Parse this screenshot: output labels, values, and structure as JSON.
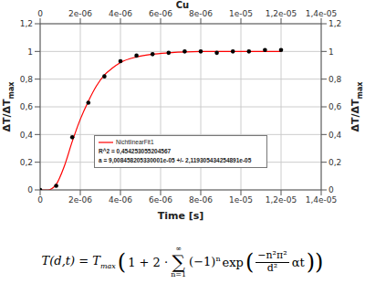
{
  "chart_data": {
    "type": "line",
    "title": "Cu",
    "x_label": "Time [s]",
    "y_label": {
      "text": "ΔT/ΔT",
      "subscript": "max"
    },
    "y2_label": {
      "text": "ΔT/ΔT",
      "subscript": "max"
    },
    "xlim": [
      0,
      1.4e-05
    ],
    "xticks": [
      0,
      {
        "value": 2e-06,
        "label": "2e-06"
      },
      {
        "value": 4e-06,
        "label": "4e-06"
      },
      {
        "value": 6e-06,
        "label": "6e-06"
      },
      {
        "value": 8e-06,
        "label": "8e-06"
      },
      {
        "value": 1e-05,
        "label": "1e-05"
      },
      {
        "value": 1.2e-05,
        "label": "1,2e-05"
      },
      {
        "value": 1.4e-05,
        "label": "1,4e-05"
      }
    ],
    "ylim": [
      0,
      1.2
    ],
    "yticks": [
      0,
      {
        "value": 0.2,
        "label": "0,2"
      },
      {
        "value": 0.4,
        "label": "0,4"
      },
      {
        "value": 0.6,
        "label": "0,6"
      },
      {
        "value": 0.8,
        "label": "0,8"
      },
      1,
      {
        "value": 1.2,
        "label": "1,2"
      }
    ],
    "y2lim": [
      0,
      1.2
    ],
    "y2ticks": [
      0,
      {
        "value": 0.2,
        "label": "0,2"
      },
      {
        "value": 0.4,
        "label": "0,4"
      },
      {
        "value": 0.6,
        "label": "0,6"
      },
      {
        "value": 0.8,
        "label": "0,8"
      },
      1,
      {
        "value": 1.2,
        "label": "1,2"
      }
    ],
    "grid": true,
    "legend": "lower center",
    "series": [
      {
        "name": "NichtlinearFit1",
        "type": "line",
        "color": "#ff0000",
        "line_style": "solid",
        "x": [
          0,
          4e-07,
          8e-07,
          1.2e-06,
          1.6e-06,
          2e-06,
          2.4e-06,
          2.8e-06,
          3.2e-06,
          3.6e-06,
          4e-06,
          4.8e-06,
          5.6e-06,
          6.4e-06,
          8e-06,
          1e-05,
          1.2e-05
        ],
        "values": [
          0,
          0,
          0.04,
          0.17,
          0.35,
          0.51,
          0.64,
          0.75,
          0.83,
          0.88,
          0.92,
          0.96,
          0.98,
          0.99,
          1.0,
          1.0,
          1.0
        ]
      },
      {
        "type": "scatter",
        "color": "#000000",
        "marker": "circle",
        "x": [
          0,
          8e-07,
          1.6e-06,
          2.4e-06,
          3.2e-06,
          4e-06,
          4.8e-06,
          5.6e-06,
          6.4e-06,
          7.2e-06,
          8e-06,
          8.8e-06,
          9.6e-06,
          1.04e-05,
          1.12e-05,
          1.2e-05
        ],
        "values": [
          0,
          0.03,
          0.38,
          0.63,
          0.82,
          0.93,
          0.97,
          0.98,
          0.99,
          1.0,
          1.0,
          0.99,
          1.0,
          1.0,
          1.01,
          1.01
        ]
      }
    ],
    "annotations": [
      "R^2 = 0,454253055204567",
      "a = 9,008458205330001e-05 +/- 2,119305434254891e-05"
    ],
    "equation": {
      "lhs": "T(d,t) = T",
      "lhs_subscript": "max",
      "open": "(",
      "prefix": "1 + 2 ·",
      "sum": "∑",
      "sum_upper": "∞",
      "sum_lower": "n=1",
      "term": "(−1)",
      "term_power": "n",
      "func": "exp",
      "func_open": "(",
      "numerator": "−n²π²",
      "denominator": "d²",
      "factor": "αt",
      "close": "))"
    }
  }
}
